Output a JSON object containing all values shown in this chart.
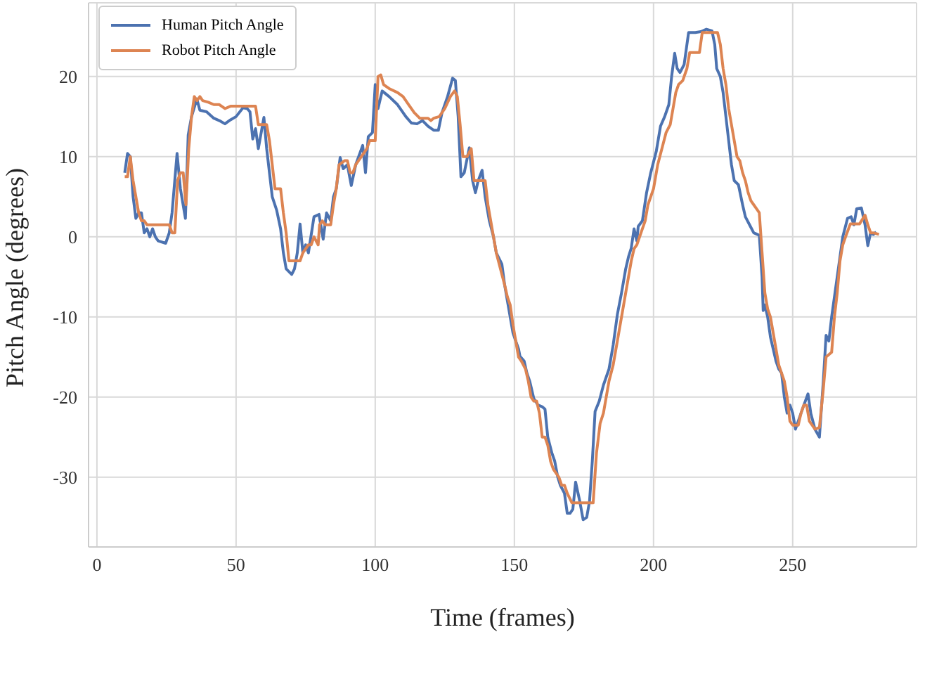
{
  "chart_data": {
    "type": "line",
    "xlabel": "Time (frames)",
    "ylabel": "Pitch Angle (degrees)",
    "xlim": [
      -3,
      294.5
    ],
    "xticks": [
      0,
      50,
      100,
      150,
      200,
      250
    ],
    "ylim": [
      -38.7,
      29.2
    ],
    "yticks": [
      -30,
      -20,
      -10,
      0,
      10,
      20
    ],
    "grid": true,
    "legend": "top left",
    "line_style": "solid",
    "series": [
      {
        "name": "Human Pitch Angle",
        "color": "#4c72b0",
        "x": [
          10,
          11,
          12,
          13,
          14,
          15,
          16,
          17,
          18,
          19,
          20,
          21,
          22,
          24.7,
          26,
          27,
          28.8,
          30,
          31.8,
          32.8,
          34,
          35.9,
          37,
          39.4,
          42,
          44,
          46,
          48,
          50,
          52.5,
          54,
          55,
          56,
          57,
          58,
          60,
          61,
          62,
          63,
          64.6,
          66,
          67,
          68,
          70,
          71,
          72,
          73,
          74,
          75,
          76,
          78,
          79.8,
          81.3,
          82.5,
          84,
          85,
          86,
          87.4,
          88.5,
          90,
          91.4,
          93,
          95.5,
          96.5,
          97.5,
          99,
          100,
          101,
          102.5,
          105,
          108,
          111,
          113,
          115,
          117,
          119,
          121,
          122.7,
          124,
          126,
          127.8,
          128.8,
          129.8,
          130.8,
          132,
          133.8,
          135,
          136,
          137,
          138.4,
          139.5,
          141,
          142.5,
          143.5,
          145.5,
          146.5,
          147.5,
          148.5,
          149.5,
          150.5,
          151.5,
          152,
          153.5,
          154.5,
          155.5,
          157,
          158.5,
          160,
          161,
          162,
          163.5,
          164.5,
          165.6,
          166.5,
          168,
          169,
          170,
          171,
          172,
          173.5,
          174.7,
          176,
          177,
          178,
          179,
          180.5,
          182,
          184,
          185.5,
          187,
          188.5,
          190,
          191,
          192,
          193,
          194,
          194.5,
          196,
          197.5,
          199,
          201,
          202.5,
          204,
          205.5,
          206.5,
          207.6,
          208.5,
          209.5,
          211,
          212.6,
          215,
          217,
          219,
          221,
          222,
          222.7,
          224,
          225,
          226,
          227,
          228,
          229,
          230.5,
          232,
          233,
          234.5,
          236,
          238,
          239,
          239.4,
          240,
          241,
          242,
          243,
          244,
          245,
          246,
          247,
          248,
          249,
          250,
          251,
          252,
          253.5,
          255.5,
          256.5,
          258,
          259.6,
          261,
          262,
          263,
          264,
          266,
          268,
          269.7,
          271,
          272,
          273,
          274.7,
          276,
          277,
          278,
          279,
          280
        ],
        "values": [
          8,
          10.4,
          10,
          5,
          2.3,
          3,
          3,
          0.5,
          1,
          0,
          1,
          0,
          -0.5,
          -0.8,
          0.5,
          3,
          10.4,
          6,
          2.3,
          12.7,
          15,
          17.2,
          15.8,
          15.6,
          14.8,
          14.5,
          14.1,
          14.6,
          15,
          16.1,
          16,
          15.6,
          12.2,
          13.5,
          11,
          14.9,
          11,
          8,
          5,
          3.3,
          1,
          -2,
          -4,
          -4.7,
          -4,
          -2,
          1.6,
          -2,
          -1,
          -2,
          2.5,
          2.8,
          -0.3,
          3,
          2,
          5,
          6,
          9.9,
          8.5,
          9,
          6.4,
          9,
          11.4,
          8,
          12.5,
          13,
          19,
          16,
          18.2,
          17.5,
          16.5,
          15,
          14.2,
          14.1,
          14.5,
          13.8,
          13.3,
          13.3,
          15.5,
          17.5,
          19.8,
          19.5,
          15,
          7.5,
          8,
          11.1,
          7,
          5.5,
          7,
          8.3,
          5,
          2,
          0,
          -2,
          -3.4,
          -6,
          -8,
          -10,
          -12,
          -13,
          -14,
          -14.9,
          -15.5,
          -17,
          -18,
          -20.2,
          -21,
          -21.2,
          -21.5,
          -25,
          -27,
          -28,
          -30,
          -31,
          -32,
          -34.5,
          -34.5,
          -34,
          -30.6,
          -33,
          -35.3,
          -35,
          -33,
          -28,
          -21.8,
          -20.5,
          -18.5,
          -16.5,
          -13.5,
          -9.7,
          -7,
          -4,
          -2.5,
          -1.4,
          1,
          -0.5,
          1.3,
          2,
          5.5,
          8,
          10.7,
          13.8,
          15,
          16.5,
          20,
          22.9,
          21,
          20.5,
          21.5,
          25.5,
          25.5,
          25.6,
          25.9,
          25.7,
          24,
          21,
          20,
          18,
          15,
          12,
          9,
          7,
          6.5,
          4,
          2.5,
          1.5,
          0.5,
          0.2,
          -5,
          -9.2,
          -8.5,
          -10,
          -12.5,
          -14,
          -15.5,
          -16.5,
          -17,
          -20,
          -22,
          -21,
          -22,
          -24,
          -23,
          -21.5,
          -19.6,
          -22,
          -24,
          -25,
          -18,
          -12.3,
          -13,
          -10,
          -5,
          0,
          2.3,
          2.5,
          1.5,
          3.5,
          3.6,
          1.5,
          -1.1,
          0.5,
          0.3,
          0.6
        ]
      },
      {
        "name": "Robot Pitch Angle",
        "color": "#dd8452",
        "x": [
          10,
          11,
          12,
          13,
          14,
          15,
          16,
          17,
          18,
          26,
          27,
          28,
          29,
          30,
          31,
          32,
          33,
          34,
          35,
          36,
          37,
          38,
          40,
          42,
          44,
          46,
          48,
          57,
          58,
          61,
          62,
          63,
          64,
          66,
          67,
          68,
          69,
          73,
          74,
          76,
          77,
          78,
          79.5,
          80,
          81,
          82,
          84,
          85,
          86,
          87,
          89,
          90,
          91,
          92,
          93,
          95,
          96,
          97,
          98,
          100,
          101,
          102,
          103,
          105,
          108,
          110,
          112,
          114,
          116,
          119,
          120,
          121,
          123,
          125,
          127,
          128.5,
          129.5,
          130.5,
          131.5,
          133,
          134.5,
          135.5,
          139.5,
          140.5,
          141.5,
          142.5,
          143.5,
          145,
          146.5,
          147.5,
          148.5,
          149.5,
          150.5,
          151.5,
          152.5,
          154,
          155,
          156,
          157,
          158,
          159,
          160,
          161,
          162,
          163,
          164,
          165,
          166,
          167,
          168,
          169,
          170.7,
          178.3,
          179.5,
          180.8,
          182,
          183,
          184,
          185.5,
          187,
          188.5,
          190,
          191,
          192,
          193,
          194,
          195,
          196,
          197,
          198,
          200,
          201.5,
          203,
          204.5,
          206,
          207,
          208,
          209,
          210.5,
          211,
          212,
          213,
          215,
          216.5,
          217.5,
          223,
          224,
          225,
          226,
          227,
          228,
          229,
          230,
          231,
          232,
          233,
          234,
          235,
          236,
          237,
          238,
          239,
          240,
          241,
          242,
          243,
          244,
          245,
          246,
          247,
          248,
          249,
          250,
          252,
          253,
          254,
          255,
          256,
          258,
          259.6,
          261,
          262,
          264,
          265,
          266,
          267,
          268,
          269,
          270.7,
          274,
          276,
          277,
          278,
          279,
          281
        ],
        "values": [
          7.5,
          7.5,
          10,
          7,
          5,
          3,
          2,
          2,
          1.5,
          1.5,
          0.5,
          0.5,
          7,
          8,
          8,
          4,
          11,
          15,
          17.5,
          17,
          17.5,
          17,
          16.8,
          16.5,
          16.5,
          16,
          16.3,
          16.3,
          14,
          14,
          12,
          9,
          6,
          6,
          3,
          0.5,
          -3,
          -3,
          -2,
          -1,
          -1,
          0,
          -1,
          1.5,
          2,
          1.5,
          1.5,
          4,
          6,
          9,
          9.5,
          9.5,
          8,
          8,
          9,
          10,
          10.5,
          11,
          12,
          12,
          20,
          20.2,
          19,
          18.5,
          18,
          17.5,
          16.5,
          15.5,
          14.8,
          14.8,
          14.5,
          14.8,
          15,
          16,
          17.5,
          18.2,
          17.5,
          14,
          10,
          10,
          11,
          7,
          7,
          4,
          2,
          0,
          -2,
          -4,
          -6,
          -7.5,
          -8.5,
          -11,
          -13,
          -15,
          -15.5,
          -16.5,
          -18,
          -20,
          -20.5,
          -20.5,
          -22,
          -25,
          -25,
          -26,
          -28,
          -29,
          -29.5,
          -30,
          -31,
          -31,
          -32,
          -33.2,
          -33.2,
          -27,
          -23.3,
          -22,
          -20,
          -18,
          -16,
          -13,
          -10,
          -7,
          -5,
          -3,
          -1.5,
          -1,
          0,
          1,
          2,
          4,
          6,
          9,
          11,
          13,
          14,
          16,
          18,
          19,
          19.5,
          20,
          21,
          23,
          23,
          23,
          25.5,
          25.5,
          24,
          21,
          19,
          16,
          14,
          12,
          10,
          9.5,
          8,
          7,
          5.5,
          4.5,
          4,
          3.5,
          3,
          -2,
          -7,
          -9,
          -10,
          -12,
          -14,
          -16,
          -17,
          -18,
          -20,
          -23,
          -23.5,
          -23.5,
          -22,
          -21,
          -21,
          -23,
          -24,
          -23.8,
          -19,
          -15,
          -14.4,
          -10,
          -7,
          -3,
          -1,
          0,
          1.6,
          1.6,
          2.7,
          1.5,
          0.5,
          0.5,
          0.3
        ]
      }
    ]
  }
}
